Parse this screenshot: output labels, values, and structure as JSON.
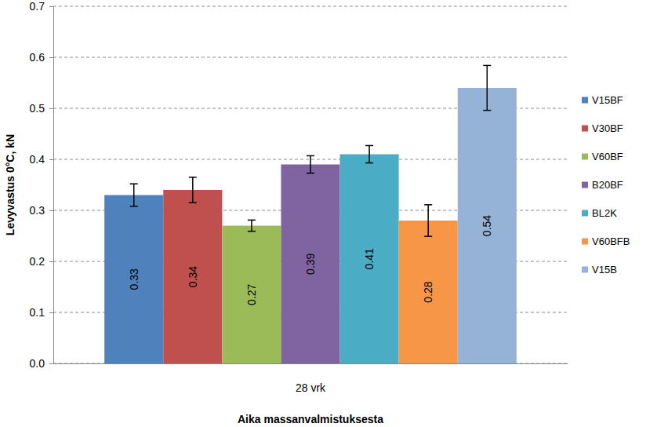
{
  "chart_data": {
    "type": "bar",
    "x_label": "Aika massanvalmistuksesta",
    "y_label": "Levyvastus 0°C, kN",
    "categories": [
      "28 vrk"
    ],
    "series": [
      {
        "name": "V15BF",
        "color": "#4f81bd",
        "values": [
          0.33
        ],
        "errors": [
          0.022
        ]
      },
      {
        "name": "V30BF",
        "color": "#c0504d",
        "values": [
          0.34
        ],
        "errors": [
          0.025
        ]
      },
      {
        "name": "V60BF",
        "color": "#9bbb59",
        "values": [
          0.27
        ],
        "errors": [
          0.011
        ]
      },
      {
        "name": "B20BF",
        "color": "#8064a2",
        "values": [
          0.39
        ],
        "errors": [
          0.017
        ]
      },
      {
        "name": "BL2K",
        "color": "#4bacc6",
        "values": [
          0.41
        ],
        "errors": [
          0.017
        ]
      },
      {
        "name": "V60BFB",
        "color": "#f79646",
        "values": [
          0.28
        ],
        "errors": [
          0.031
        ]
      },
      {
        "name": "V15B",
        "color": "#95b3d7",
        "values": [
          0.54
        ],
        "errors": [
          0.044
        ]
      }
    ],
    "ylim": [
      0,
      0.7
    ],
    "yticks": [
      {
        "value": 0,
        "label": "0.0"
      },
      0.1,
      0.2,
      0.3,
      0.4,
      0.5,
      0.6,
      0.7
    ],
    "grid": true,
    "legend": "right",
    "data_labels": true
  }
}
